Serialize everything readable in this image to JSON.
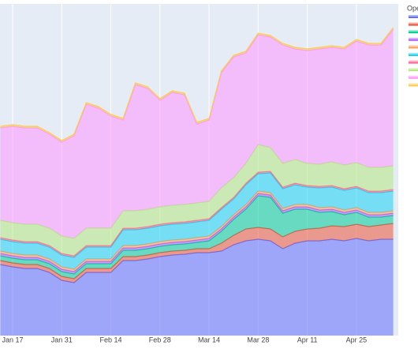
{
  "chart_data": {
    "type": "stacked_area",
    "legend_title": "Ope",
    "x": [
      null,
      "Jan 17",
      null,
      null,
      null,
      "Jan 31",
      null,
      null,
      null,
      "Feb 14",
      null,
      null,
      null,
      "Feb 28",
      null,
      null,
      null,
      "Mar 14",
      null,
      null,
      null,
      "Mar 28",
      null,
      null,
      null,
      "Apr 11",
      null,
      null,
      null,
      "Apr 25",
      null,
      null,
      null
    ],
    "ylim": [
      0,
      420
    ],
    "grid": true,
    "series": [
      {
        "color": "#636efa",
        "values": [
          90,
          87,
          85,
          85,
          80,
          70,
          67,
          80,
          80,
          80,
          95,
          95,
          97,
          100,
          102,
          103,
          105,
          105,
          107,
          115,
          120,
          122,
          120,
          110,
          117,
          120,
          120,
          122,
          120,
          123,
          120,
          122,
          122
        ]
      },
      {
        "color": "#ef553b",
        "values": [
          5,
          5,
          5,
          5,
          5,
          5,
          5,
          5,
          5,
          5,
          5,
          5,
          5,
          5,
          5,
          5,
          5,
          5,
          10,
          12,
          15,
          15,
          15,
          15,
          15,
          15,
          16,
          17,
          18,
          18,
          18,
          18,
          20
        ]
      },
      {
        "color": "#00cc96",
        "values": [
          6,
          6,
          6,
          6,
          6,
          6,
          6,
          6,
          6,
          6,
          8,
          8,
          8,
          8,
          8,
          8,
          8,
          10,
          15,
          20,
          25,
          40,
          40,
          30,
          28,
          25,
          20,
          18,
          15,
          15,
          12,
          10,
          10
        ]
      },
      {
        "color": "#ab63fa",
        "values": [
          3,
          3,
          3,
          3,
          3,
          3,
          3,
          3,
          3,
          3,
          3,
          3,
          3,
          3,
          3,
          3,
          3,
          3,
          3,
          3,
          3,
          3,
          3,
          3,
          3,
          3,
          3,
          3,
          3,
          3,
          3,
          3,
          3
        ]
      },
      {
        "color": "#ffa15a",
        "values": [
          3,
          3,
          3,
          3,
          3,
          3,
          3,
          3,
          3,
          3,
          3,
          3,
          3,
          3,
          3,
          3,
          3,
          3,
          3,
          3,
          3,
          3,
          3,
          3,
          3,
          3,
          3,
          3,
          3,
          3,
          3,
          3,
          3
        ]
      },
      {
        "color": "#19d3f3",
        "values": [
          15,
          15,
          15,
          15,
          15,
          15,
          15,
          15,
          15,
          15,
          20,
          20,
          20,
          20,
          20,
          20,
          20,
          20,
          22,
          20,
          25,
          22,
          25,
          25,
          25,
          22,
          25,
          25,
          25,
          25,
          25,
          25,
          25
        ]
      },
      {
        "color": "#ff6692",
        "values": [
          2,
          2,
          2,
          2,
          2,
          2,
          2,
          2,
          2,
          2,
          2,
          2,
          2,
          2,
          2,
          2,
          2,
          2,
          2,
          2,
          2,
          2,
          2,
          2,
          2,
          2,
          2,
          2,
          2,
          2,
          2,
          2,
          2
        ]
      },
      {
        "color": "#b6e880",
        "values": [
          22,
          22,
          22,
          22,
          22,
          22,
          22,
          22,
          22,
          22,
          22,
          22,
          22,
          22,
          22,
          22,
          22,
          22,
          25,
          25,
          25,
          35,
          30,
          30,
          30,
          28,
          28,
          30,
          30,
          30,
          30,
          30,
          30
        ]
      },
      {
        "color": "#ff97ff",
        "values": [
          117,
          122,
          122,
          122,
          119,
          119,
          130,
          157,
          152,
          142,
          115,
          160,
          153,
          135,
          143,
          139,
          100,
          103,
          146,
          153,
          140,
          139,
          140,
          150,
          140,
          143,
          146,
          145,
          147,
          154,
          155,
          155,
          173
        ]
      },
      {
        "color": "#fecb52",
        "values": [
          2,
          2,
          2,
          2,
          2,
          2,
          2,
          2,
          2,
          2,
          2,
          2,
          2,
          2,
          2,
          2,
          2,
          2,
          2,
          2,
          2,
          2,
          2,
          2,
          2,
          2,
          2,
          2,
          2,
          2,
          2,
          2,
          2
        ]
      }
    ]
  }
}
